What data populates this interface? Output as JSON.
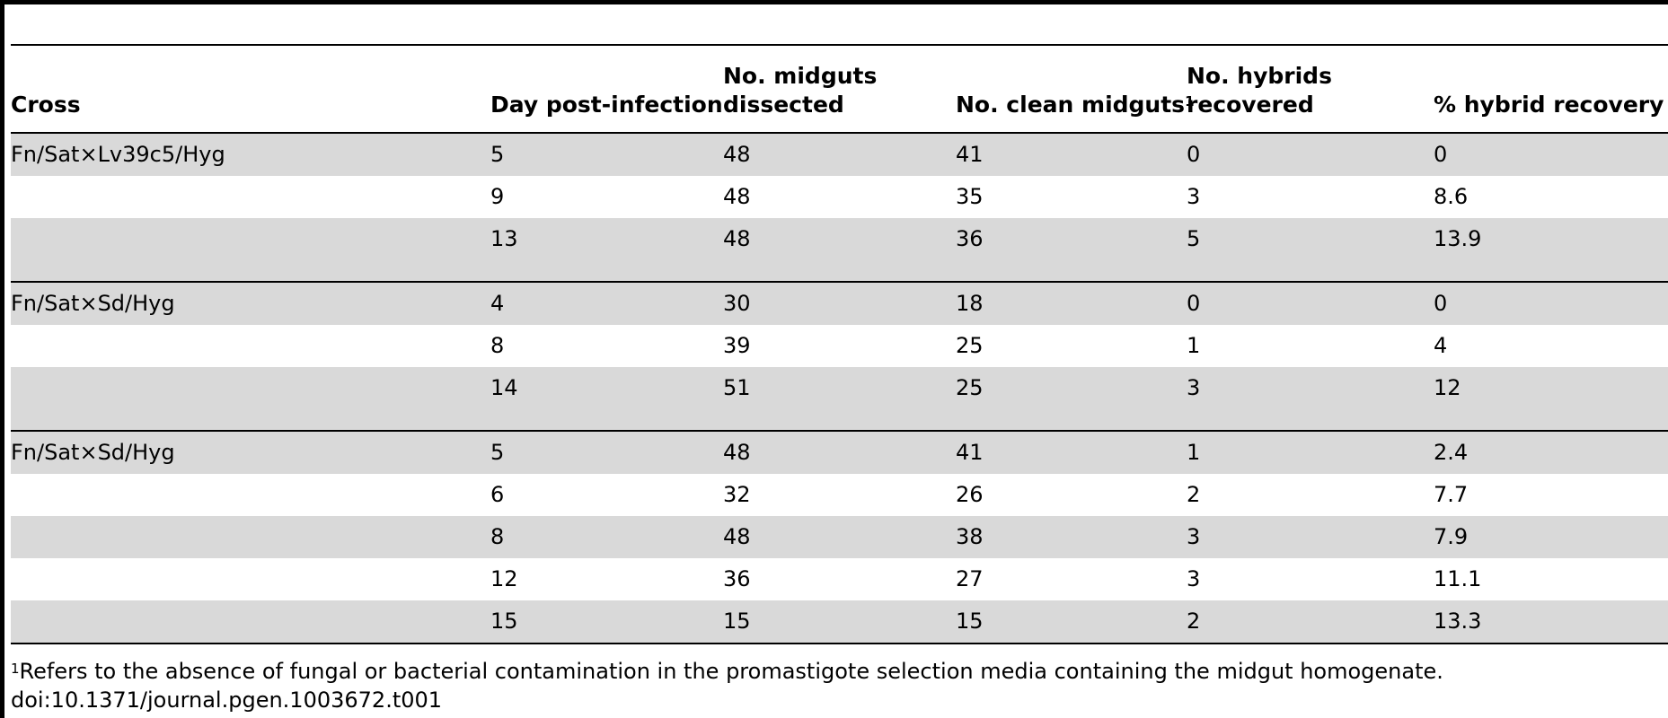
{
  "table": {
    "headers": {
      "cross": "Cross",
      "day": "Day post-infection",
      "dissected_line1": "No. midguts",
      "dissected_line2": "dissected",
      "clean": "No. clean midguts",
      "clean_sup": "1",
      "hybrids_line1": "No. hybrids",
      "hybrids_line2": "recovered",
      "recovery": "% hybrid recovery"
    },
    "groups": [
      {
        "cross": "Fn/Sat×Lv39c5/Hyg",
        "rows": [
          [
            "5",
            "48",
            "41",
            "0",
            "0"
          ],
          [
            "9",
            "48",
            "35",
            "3",
            "8.6"
          ],
          [
            "13",
            "48",
            "36",
            "5",
            "13.9"
          ]
        ]
      },
      {
        "cross": "Fn/Sat×Sd/Hyg",
        "rows": [
          [
            "4",
            "30",
            "18",
            "0",
            "0"
          ],
          [
            "8",
            "39",
            "25",
            "1",
            "4"
          ],
          [
            "14",
            "51",
            "25",
            "3",
            "12"
          ]
        ]
      },
      {
        "cross": "Fn/Sat×Sd/Hyg",
        "rows": [
          [
            "5",
            "48",
            "41",
            "1",
            "2.4"
          ],
          [
            "6",
            "32",
            "26",
            "2",
            "7.7"
          ],
          [
            "8",
            "48",
            "38",
            "3",
            "7.9"
          ],
          [
            "12",
            "36",
            "27",
            "3",
            "11.1"
          ],
          [
            "15",
            "15",
            "15",
            "2",
            "13.3"
          ]
        ]
      }
    ]
  },
  "footnote": {
    "marker": "1",
    "text": "Refers to the absence of fungal or bacterial contamination in the promastigote selection media containing the midgut homogenate."
  },
  "doi": "doi:10.1371/journal.pgen.1003672.t001"
}
